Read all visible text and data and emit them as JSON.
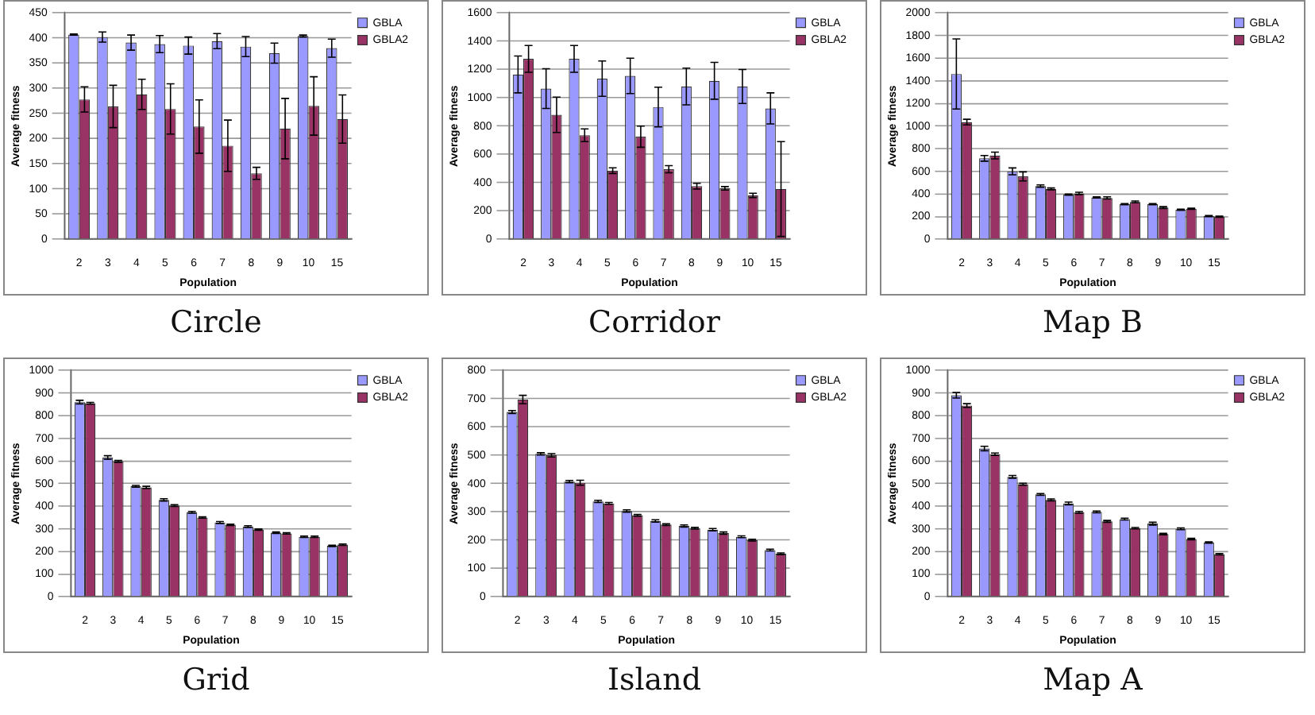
{
  "chart_data": [
    {
      "type": "bar",
      "title": "Circle",
      "xlabel": "Population",
      "ylabel": "Average fitness",
      "categories": [
        "2",
        "3",
        "4",
        "5",
        "6",
        "7",
        "8",
        "9",
        "10",
        "15"
      ],
      "ylim": [
        0,
        450
      ],
      "yticks": [
        0,
        50,
        100,
        150,
        200,
        250,
        300,
        350,
        400,
        450
      ],
      "grid": "y",
      "legend": "top right",
      "series": [
        {
          "name": "GBLA",
          "color": "#9999ff",
          "values": [
            407,
            402,
            391,
            388,
            385,
            394,
            383,
            370,
            404,
            380
          ],
          "errors": [
            1,
            10,
            15,
            17,
            17,
            15,
            20,
            20,
            2,
            18
          ]
        },
        {
          "name": "GBLA2",
          "color": "#993366",
          "values": [
            278,
            264,
            288,
            259,
            224,
            186,
            131,
            220,
            265,
            239
          ],
          "errors": [
            25,
            42,
            30,
            50,
            53,
            51,
            12,
            60,
            58,
            48
          ]
        }
      ]
    },
    {
      "type": "bar",
      "title": "Corridor",
      "xlabel": "Population",
      "ylabel": "Average fitness",
      "categories": [
        "2",
        "3",
        "4",
        "5",
        "6",
        "7",
        "8",
        "9",
        "10",
        "15"
      ],
      "ylim": [
        0,
        1600
      ],
      "yticks": [
        0,
        200,
        400,
        600,
        800,
        1000,
        1200,
        1400,
        1600
      ],
      "grid": "y",
      "legend": "top right",
      "series": [
        {
          "name": "GBLA",
          "color": "#9999ff",
          "values": [
            1165,
            1065,
            1275,
            1135,
            1155,
            935,
            1080,
            1120,
            1080,
            925
          ],
          "errors": [
            130,
            140,
            95,
            125,
            125,
            140,
            130,
            130,
            120,
            110
          ]
        },
        {
          "name": "GBLA2",
          "color": "#993366",
          "values": [
            1275,
            880,
            735,
            485,
            725,
            495,
            375,
            360,
            310,
            355
          ],
          "errors": [
            95,
            125,
            45,
            20,
            75,
            25,
            20,
            12,
            15,
            335
          ]
        }
      ]
    },
    {
      "type": "bar",
      "title": "Map B",
      "xlabel": "Population",
      "ylabel": "Average fitness",
      "categories": [
        "2",
        "3",
        "4",
        "5",
        "6",
        "7",
        "8",
        "9",
        "10",
        "15"
      ],
      "ylim": [
        0,
        2000
      ],
      "yticks": [
        0,
        200,
        400,
        600,
        800,
        1000,
        1200,
        1400,
        1600,
        1800,
        2000
      ],
      "grid": "y",
      "legend": "top right",
      "series": [
        {
          "name": "GBLA",
          "color": "#9999ff",
          "values": [
            1460,
            715,
            600,
            470,
            395,
            370,
            310,
            310,
            260,
            205
          ],
          "errors": [
            310,
            25,
            30,
            10,
            5,
            5,
            5,
            5,
            5,
            5
          ]
        },
        {
          "name": "GBLA2",
          "color": "#993366",
          "values": [
            1035,
            740,
            555,
            445,
            405,
            365,
            330,
            280,
            270,
            200
          ],
          "errors": [
            25,
            30,
            40,
            8,
            10,
            10,
            8,
            8,
            5,
            5
          ]
        }
      ]
    },
    {
      "type": "bar",
      "title": "Grid",
      "xlabel": "Population",
      "ylabel": "Average fitness",
      "categories": [
        "2",
        "3",
        "4",
        "5",
        "6",
        "7",
        "8",
        "9",
        "10",
        "15"
      ],
      "ylim": [
        0,
        1000
      ],
      "yticks": [
        0,
        100,
        200,
        300,
        400,
        500,
        600,
        700,
        800,
        900,
        1000
      ],
      "grid": "y",
      "legend": "top right",
      "series": [
        {
          "name": "GBLA",
          "color": "#9999ff",
          "values": [
            860,
            615,
            488,
            428,
            373,
            328,
            310,
            283,
            265,
            225
          ],
          "errors": [
            8,
            8,
            4,
            5,
            4,
            4,
            4,
            3,
            3,
            3
          ]
        },
        {
          "name": "GBLA2",
          "color": "#993366",
          "values": [
            855,
            598,
            483,
            403,
            350,
            318,
            297,
            280,
            265,
            230
          ],
          "errors": [
            4,
            4,
            5,
            4,
            3,
            3,
            3,
            3,
            3,
            3
          ]
        }
      ]
    },
    {
      "type": "bar",
      "title": "Island",
      "xlabel": "Population",
      "ylabel": "Average fitness",
      "categories": [
        "2",
        "3",
        "4",
        "5",
        "6",
        "7",
        "8",
        "9",
        "10",
        "15"
      ],
      "ylim": [
        0,
        800
      ],
      "yticks": [
        0,
        100,
        200,
        300,
        400,
        500,
        600,
        700,
        800
      ],
      "grid": "y",
      "legend": "top right",
      "series": [
        {
          "name": "GBLA",
          "color": "#9999ff",
          "values": [
            653,
            505,
            407,
            337,
            303,
            268,
            250,
            237,
            212,
            165
          ],
          "errors": [
            5,
            4,
            4,
            4,
            4,
            4,
            4,
            4,
            3,
            3
          ]
        },
        {
          "name": "GBLA2",
          "color": "#993366",
          "values": [
            697,
            500,
            403,
            330,
            288,
            255,
            242,
            225,
            200,
            152
          ],
          "errors": [
            15,
            6,
            9,
            3,
            3,
            3,
            3,
            4,
            3,
            3
          ]
        }
      ]
    },
    {
      "type": "bar",
      "title": "Map A",
      "xlabel": "Population",
      "ylabel": "Average fitness",
      "categories": [
        "2",
        "3",
        "4",
        "5",
        "6",
        "7",
        "8",
        "9",
        "10",
        "15"
      ],
      "ylim": [
        0,
        1000
      ],
      "yticks": [
        0,
        100,
        200,
        300,
        400,
        500,
        600,
        700,
        800,
        900,
        1000
      ],
      "grid": "y",
      "legend": "top right",
      "series": [
        {
          "name": "GBLA",
          "color": "#9999ff",
          "values": [
            890,
            655,
            530,
            452,
            412,
            375,
            343,
            323,
            300,
            240
          ],
          "errors": [
            12,
            10,
            6,
            4,
            6,
            4,
            4,
            6,
            4,
            3
          ]
        },
        {
          "name": "GBLA2",
          "color": "#993366",
          "values": [
            845,
            630,
            497,
            428,
            373,
            333,
            303,
            277,
            255,
            188
          ],
          "errors": [
            8,
            5,
            4,
            4,
            4,
            4,
            3,
            3,
            3,
            3
          ]
        }
      ]
    }
  ]
}
